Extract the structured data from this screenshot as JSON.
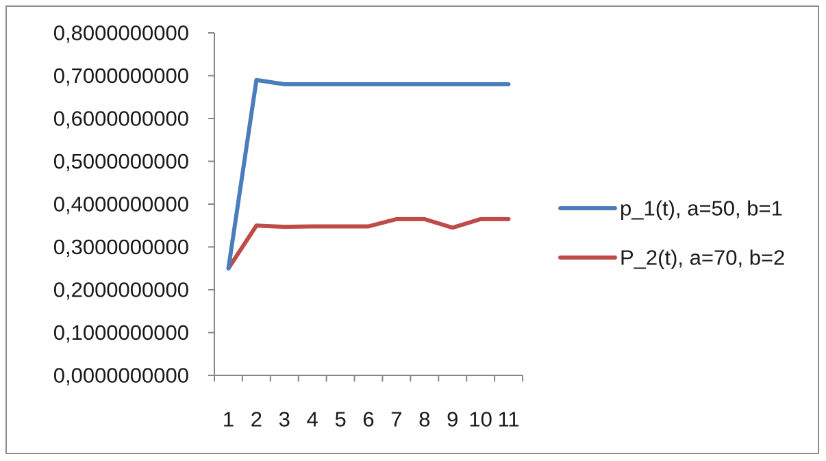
{
  "chart_data": {
    "type": "line",
    "title": "",
    "xlabel": "",
    "ylabel": "",
    "categories": [
      "1",
      "2",
      "3",
      "4",
      "5",
      "6",
      "7",
      "8",
      "9",
      "10",
      "11"
    ],
    "x_tick_labels": [
      "1",
      "2",
      "3",
      "4",
      "5",
      "6",
      "7",
      "8",
      "9",
      "10",
      "11"
    ],
    "ylim": [
      0,
      0.8
    ],
    "y_ticks": [
      0,
      0.1,
      0.2,
      0.3,
      0.4,
      0.5,
      0.6,
      0.7,
      0.8
    ],
    "y_tick_labels": [
      "0,0000000000",
      "0,1000000000",
      "0,2000000000",
      "0,3000000000",
      "0,4000000000",
      "0,5000000000",
      "0,6000000000",
      "0,7000000000",
      "0,8000000000"
    ],
    "grid": false,
    "legend_position": "right",
    "series": [
      {
        "name": "p_1(t), a=50, b=1",
        "color": "#4a7ebb",
        "values": [
          0.25,
          0.69,
          0.68,
          0.68,
          0.68,
          0.68,
          0.68,
          0.68,
          0.68,
          0.68,
          0.68
        ]
      },
      {
        "name": "P_2(t), a=70, b=2",
        "color": "#be4b48",
        "values": [
          0.25,
          0.35,
          0.347,
          0.348,
          0.348,
          0.348,
          0.365,
          0.365,
          0.345,
          0.365,
          0.365
        ]
      }
    ]
  }
}
